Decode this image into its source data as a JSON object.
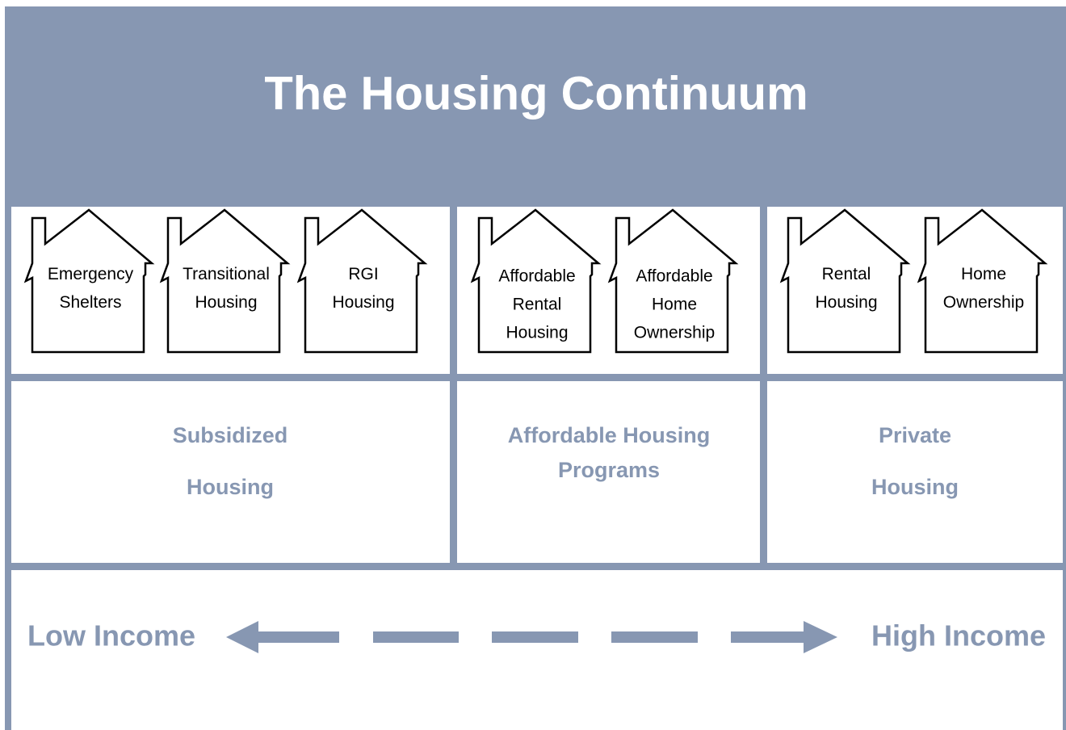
{
  "title": "The Housing Continuum",
  "sections": [
    {
      "houses": [
        [
          "Emergency",
          "Shelters"
        ],
        [
          "Transitional",
          "Housing"
        ],
        [
          "RGI",
          "Housing"
        ]
      ],
      "label": [
        "Subsidized",
        "Housing"
      ]
    },
    {
      "houses": [
        [
          "Affordable",
          "Rental",
          "Housing"
        ],
        [
          "Affordable",
          "Home",
          "Ownership"
        ]
      ],
      "label": [
        "Affordable Housing",
        "Programs"
      ]
    },
    {
      "houses": [
        [
          "Rental",
          "Housing"
        ],
        [
          "Home",
          "Ownership"
        ]
      ],
      "label": [
        "Private",
        "Housing"
      ]
    }
  ],
  "income": {
    "low": "Low Income",
    "high": "High Income"
  }
}
